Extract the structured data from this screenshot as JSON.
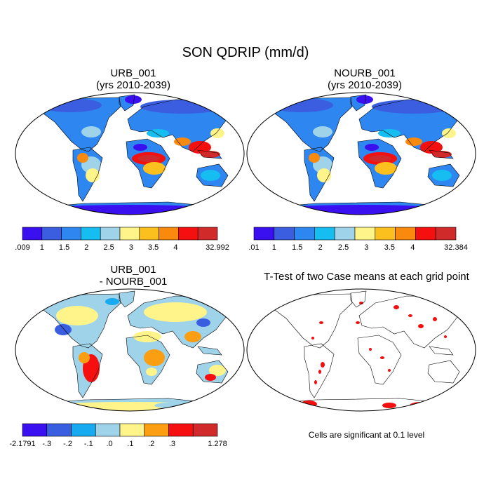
{
  "figure": {
    "title": "SON QDRIP (mm/d)"
  },
  "panels": [
    {
      "id": "urb",
      "title_line1": "URB_001",
      "title_line2": "(yrs 2010-2039)"
    },
    {
      "id": "nourb",
      "title_line1": "NOURB_001",
      "title_line2": "(yrs 2010-2039)"
    },
    {
      "id": "diff",
      "title_line1": "URB_001",
      "title_line2": "- NOURB_001"
    },
    {
      "id": "ttest",
      "title_line1": "T-Test of two Case means at each grid point",
      "title_line2": ""
    }
  ],
  "colorbars": [
    {
      "id": "urb",
      "labels": [
        ".009",
        "1",
        "1.5",
        "2",
        "2.5",
        "3",
        "3.5",
        "4",
        "32.992"
      ]
    },
    {
      "id": "nourb",
      "labels": [
        ".01",
        "1",
        "1.5",
        "2",
        "2.5",
        "3",
        "3.5",
        "4",
        "32.384"
      ]
    },
    {
      "id": "diff",
      "labels": [
        "-2.1791",
        "-.3",
        "-.2",
        "-.1",
        ".0",
        ".1",
        ".2",
        ".3",
        "1.278"
      ]
    }
  ],
  "colors": {
    "abs": [
      "#3a10f0",
      "#3b5ee0",
      "#2e86f0",
      "#16bdf0",
      "#9fd3ea",
      "#fff48a",
      "#fbc01e",
      "#f98a0e",
      "#f50f0f",
      "#d02a2a"
    ],
    "diff": [
      "#3a10f0",
      "#3a5ee0",
      "#18aaf0",
      "#9fd3ea",
      "#fff48a",
      "#fb9e12",
      "#f50f0f",
      "#d02a2a"
    ],
    "signif": "#f20f0f"
  },
  "footnote": "Cells are significant at 0.1 level"
}
